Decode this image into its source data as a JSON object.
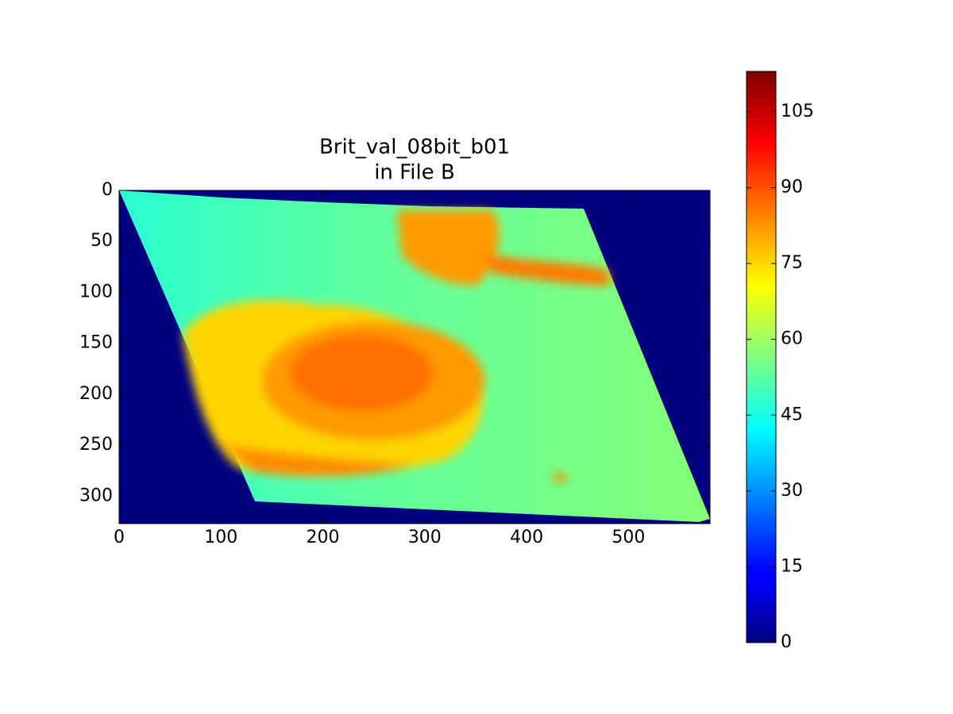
{
  "chart_data": {
    "type": "image",
    "title_lines": [
      "Brit_val_08bit_b01",
      "in File B"
    ],
    "xlim": [
      0,
      580
    ],
    "xticks": [
      0,
      100,
      200,
      300,
      400,
      500
    ],
    "ylim": [
      327,
      0
    ],
    "yticks": [
      0,
      50,
      100,
      150,
      200,
      250,
      300
    ],
    "colorbar": {
      "colormap": "jet",
      "lim": [
        0,
        113
      ],
      "ticks": [
        0,
        15,
        30,
        45,
        60,
        75,
        90,
        105
      ]
    }
  }
}
